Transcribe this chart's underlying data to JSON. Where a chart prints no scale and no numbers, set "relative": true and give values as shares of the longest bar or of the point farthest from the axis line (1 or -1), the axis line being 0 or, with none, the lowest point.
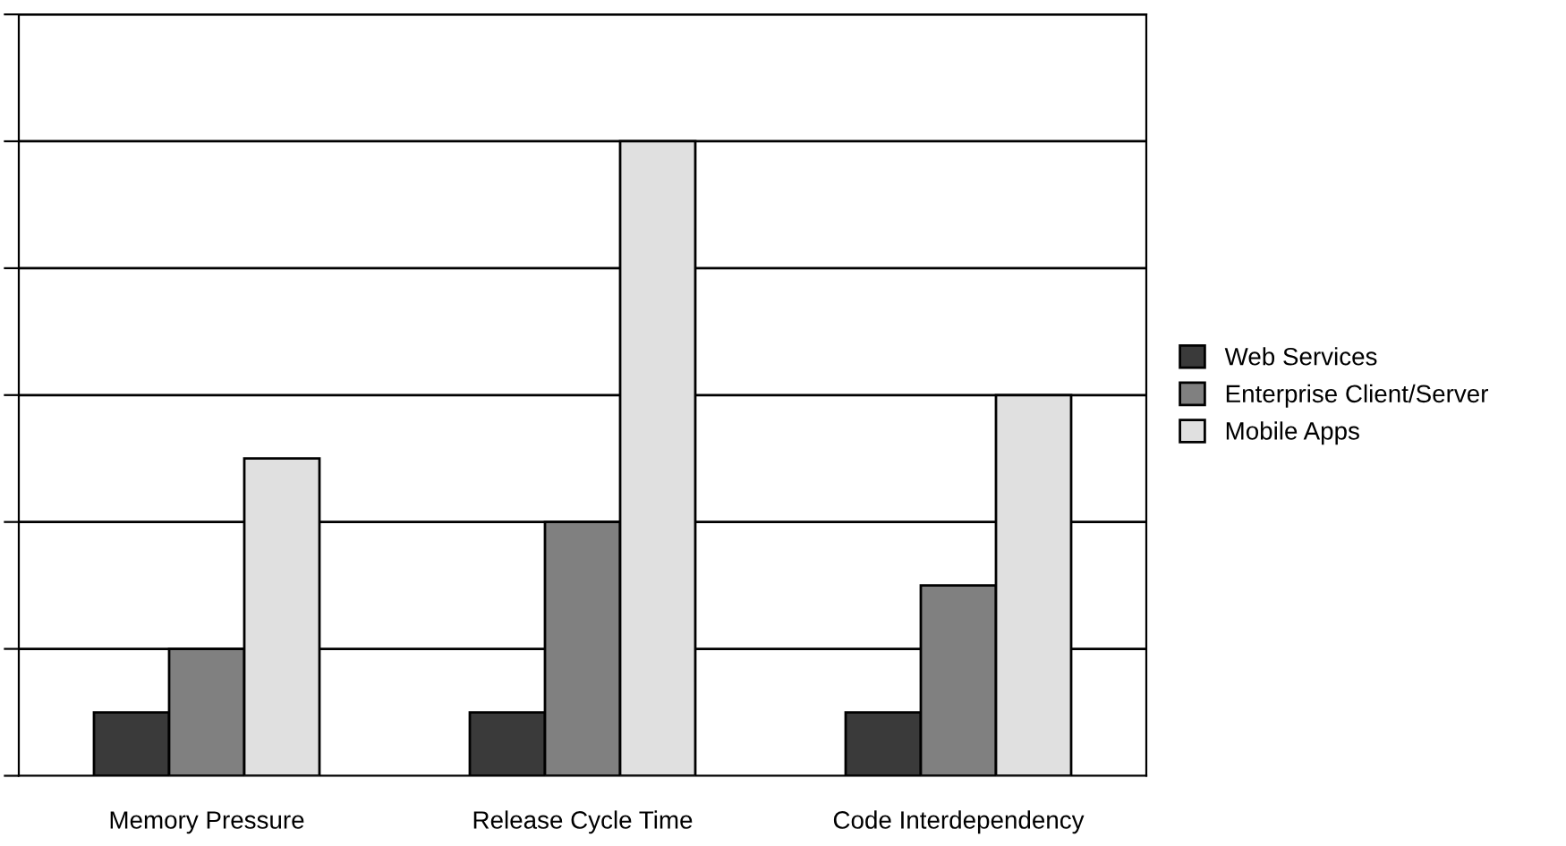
{
  "chart_data": {
    "type": "bar",
    "relative": true,
    "categories": [
      "Memory Pressure",
      "Release Cycle Time",
      "Code Interdependency"
    ],
    "series": [
      {
        "name": "Web Services",
        "color": "#3a3a3a",
        "values": [
          0.1,
          0.1,
          0.1
        ]
      },
      {
        "name": "Enterprise Client/Server",
        "color": "#808080",
        "values": [
          0.2,
          0.4,
          0.3
        ]
      },
      {
        "name": "Mobile Apps",
        "color": "#e0e0e0",
        "values": [
          0.5,
          1,
          0.6
        ]
      }
    ],
    "grid": "y",
    "legend": "right"
  }
}
